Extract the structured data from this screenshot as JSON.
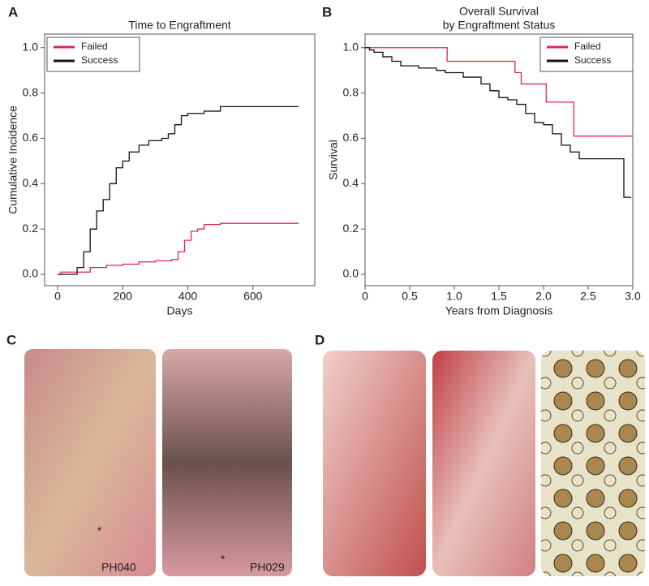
{
  "panels": {
    "labels": [
      "A",
      "B",
      "C",
      "D"
    ],
    "photo_labels": [
      "PH040",
      "PH029"
    ],
    "photo_marks": [
      "*",
      "*"
    ]
  },
  "chart_data": [
    {
      "type": "step",
      "title": [
        "Time to Engraftment"
      ],
      "xlabel": "Days",
      "ylabel": "Cumulative Incidence",
      "xlim": [
        -40,
        790
      ],
      "ylim": [
        -0.05,
        1.06
      ],
      "xticks": [
        0,
        200,
        400,
        600
      ],
      "yticks": [
        {
          "value": 0,
          "label": "0.0"
        },
        {
          "value": 0.2,
          "label": "0.2"
        },
        {
          "value": 0.4,
          "label": "0.4"
        },
        {
          "value": 0.6,
          "label": "0.6"
        },
        {
          "value": 0.8,
          "label": "0.8"
        },
        {
          "value": 1,
          "label": "1.0"
        }
      ],
      "legend": "upper left",
      "series": [
        {
          "name": "Failed",
          "color": "#e0284a",
          "x": [
            0,
            10,
            50,
            100,
            150,
            200,
            250,
            300,
            350,
            370,
            390,
            410,
            430,
            450,
            500,
            740
          ],
          "values": [
            0,
            0.01,
            0.01,
            0.03,
            0.04,
            0.045,
            0.055,
            0.06,
            0.065,
            0.1,
            0.15,
            0.19,
            0.2,
            0.22,
            0.225,
            0.225
          ]
        },
        {
          "name": "Success",
          "color": "#111111",
          "x": [
            0,
            40,
            60,
            80,
            100,
            120,
            140,
            160,
            180,
            200,
            220,
            250,
            280,
            320,
            340,
            360,
            380,
            400,
            450,
            500,
            740
          ],
          "values": [
            0,
            0,
            0.03,
            0.1,
            0.2,
            0.28,
            0.33,
            0.4,
            0.47,
            0.5,
            0.54,
            0.57,
            0.59,
            0.6,
            0.62,
            0.66,
            0.7,
            0.71,
            0.72,
            0.74,
            0.74
          ]
        }
      ]
    },
    {
      "type": "step",
      "title": [
        "Overall Survival",
        "by Engraftment Status"
      ],
      "xlabel": "Years from Diagnosis",
      "ylabel": "Survival",
      "xlim": [
        0,
        3
      ],
      "ylim": [
        -0.05,
        1.06
      ],
      "xticks": [
        0,
        0.5,
        {
          "value": 1,
          "label": "1.0"
        },
        1.5,
        {
          "value": 2,
          "label": "2.0"
        },
        2.5,
        {
          "value": 3,
          "label": "3.0"
        }
      ],
      "yticks": [
        {
          "value": 0,
          "label": "0.0"
        },
        {
          "value": 0.2,
          "label": "0.2"
        },
        {
          "value": 0.4,
          "label": "0.4"
        },
        {
          "value": 0.6,
          "label": "0.6"
        },
        {
          "value": 0.8,
          "label": "0.8"
        },
        {
          "value": 1,
          "label": "1.0"
        }
      ],
      "legend": "upper right",
      "series": [
        {
          "name": "Failed",
          "color": "#e0284a",
          "x": [
            0,
            0.92,
            1.68,
            1.75,
            2.03,
            2.34,
            3.0
          ],
          "values": [
            1,
            0.94,
            0.89,
            0.84,
            0.76,
            0.61,
            0.61
          ]
        },
        {
          "name": "Success",
          "color": "#111111",
          "x": [
            0,
            0.05,
            0.1,
            0.2,
            0.3,
            0.4,
            0.6,
            0.8,
            0.9,
            1.1,
            1.3,
            1.4,
            1.5,
            1.6,
            1.7,
            1.8,
            1.9,
            2.0,
            2.1,
            2.2,
            2.3,
            2.4,
            2.9,
            2.98
          ],
          "values": [
            1,
            0.99,
            0.98,
            0.96,
            0.94,
            0.92,
            0.91,
            0.9,
            0.89,
            0.87,
            0.84,
            0.81,
            0.78,
            0.77,
            0.75,
            0.71,
            0.67,
            0.66,
            0.62,
            0.57,
            0.54,
            0.51,
            0.34,
            0.34
          ]
        }
      ]
    }
  ]
}
